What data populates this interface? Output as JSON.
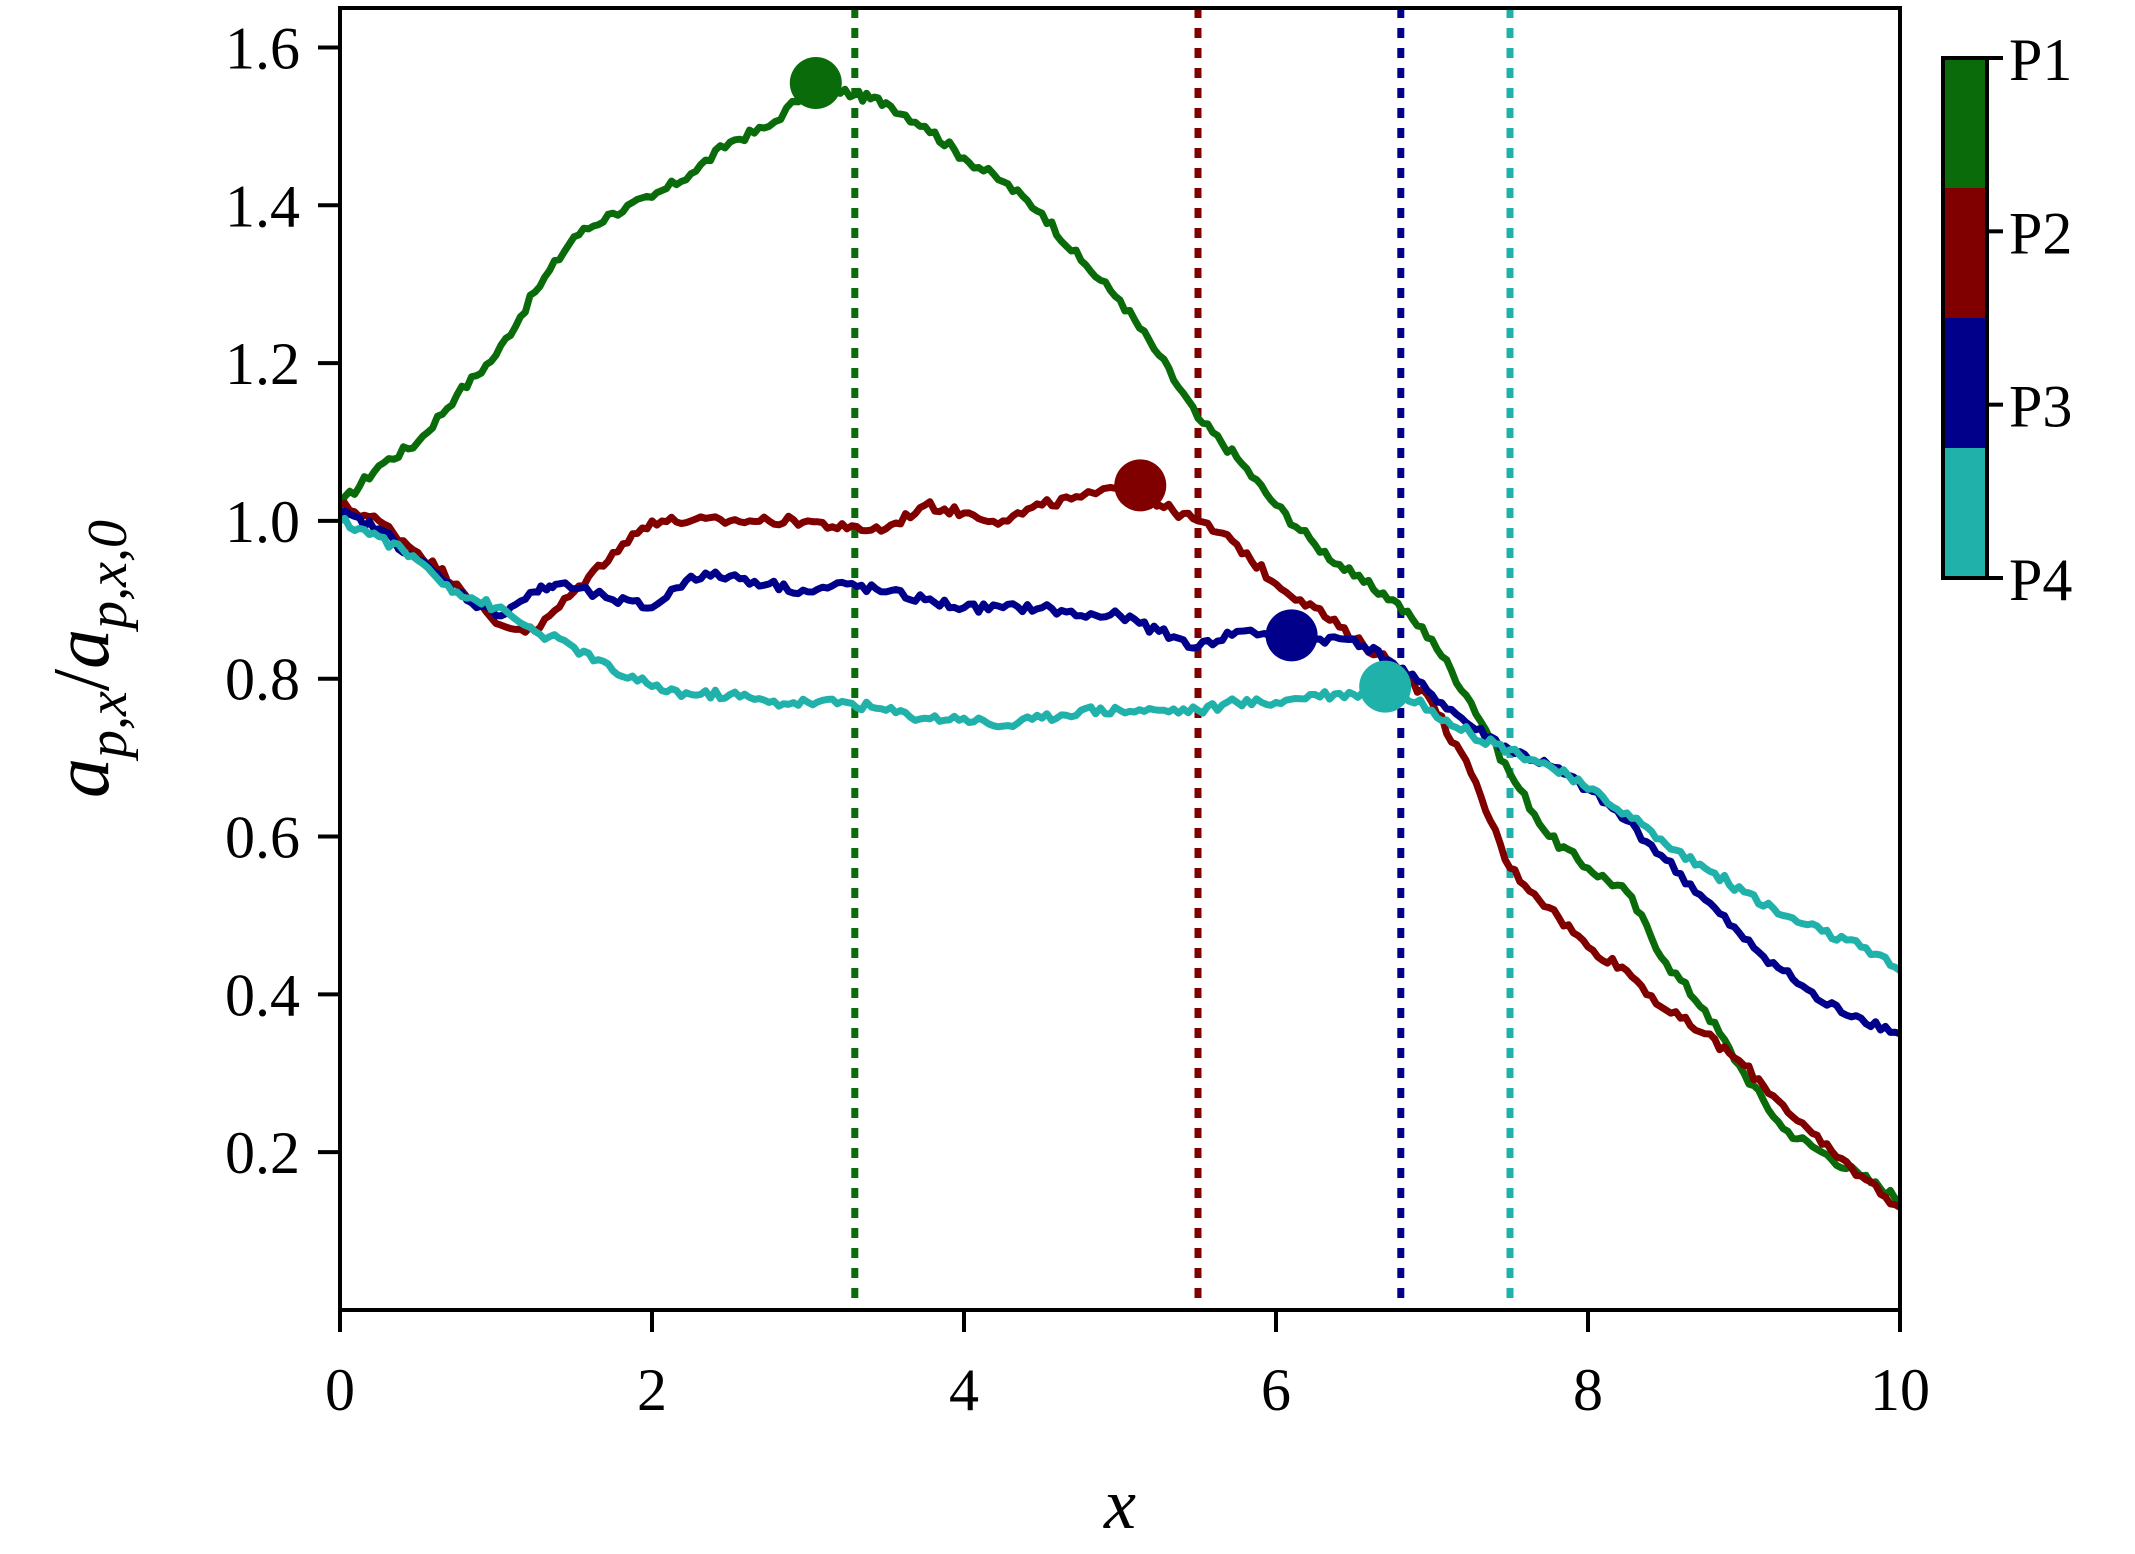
{
  "chart_data": {
    "type": "line",
    "xlabel": "x",
    "ylabel_parts": {
      "main": "a",
      "num_sub": "p,x",
      "den_sub": "p,x,0"
    },
    "xlim": [
      0,
      10
    ],
    "ylim": [
      0,
      1.65
    ],
    "x_ticks": [
      0,
      2,
      4,
      6,
      8,
      10
    ],
    "x_tick_labels": [
      "0",
      "2",
      "4",
      "6",
      "8",
      "10"
    ],
    "y_ticks": [
      0.2,
      0.4,
      0.6,
      0.8,
      1.0,
      1.2,
      1.4,
      1.6
    ],
    "y_tick_labels": [
      "0.2",
      "0.4",
      "0.6",
      "0.8",
      "1.0",
      "1.2",
      "1.4",
      "1.6"
    ],
    "grid": false,
    "series": [
      {
        "name": "P1",
        "color": "#0a6b0a",
        "vline_x": 3.3,
        "peak": [
          3.05,
          1.555
        ],
        "x": [
          0,
          0.25,
          0.5,
          0.75,
          1.0,
          1.25,
          1.5,
          1.75,
          2.0,
          2.25,
          2.5,
          2.75,
          3.05,
          3.3,
          3.5,
          3.75,
          4.0,
          4.25,
          4.5,
          4.75,
          5.0,
          5.25,
          5.5,
          5.75,
          6.0,
          6.25,
          6.5,
          6.75,
          7.0,
          7.25,
          7.5,
          7.75,
          8.0,
          8.25,
          8.5,
          8.75,
          9.0,
          9.25,
          9.5,
          9.75,
          10.0
        ],
        "y": [
          1.02,
          1.07,
          1.1,
          1.16,
          1.21,
          1.29,
          1.36,
          1.39,
          1.41,
          1.44,
          1.48,
          1.5,
          1.555,
          1.54,
          1.53,
          1.5,
          1.46,
          1.43,
          1.39,
          1.33,
          1.28,
          1.21,
          1.13,
          1.08,
          1.02,
          0.97,
          0.93,
          0.9,
          0.85,
          0.77,
          0.68,
          0.6,
          0.56,
          0.53,
          0.44,
          0.38,
          0.3,
          0.23,
          0.2,
          0.17,
          0.14
        ]
      },
      {
        "name": "P2",
        "color": "#800000",
        "vline_x": 5.5,
        "peak": [
          5.13,
          1.045
        ],
        "x": [
          0,
          0.25,
          0.5,
          0.75,
          1.0,
          1.25,
          1.5,
          1.75,
          2.0,
          2.25,
          2.5,
          2.75,
          3.0,
          3.25,
          3.5,
          3.75,
          4.0,
          4.25,
          4.5,
          4.75,
          5.13,
          5.25,
          5.5,
          5.75,
          6.0,
          6.25,
          6.5,
          6.75,
          7.0,
          7.25,
          7.5,
          7.75,
          8.0,
          8.25,
          8.5,
          8.75,
          9.0,
          9.25,
          9.5,
          9.75,
          10.0
        ],
        "y": [
          1.02,
          1.0,
          0.96,
          0.92,
          0.87,
          0.86,
          0.91,
          0.96,
          1.0,
          1.0,
          1.0,
          1.0,
          1.0,
          0.99,
          0.99,
          1.02,
          1.01,
          1.0,
          1.02,
          1.03,
          1.045,
          1.02,
          1.0,
          0.97,
          0.92,
          0.89,
          0.85,
          0.82,
          0.77,
          0.68,
          0.56,
          0.51,
          0.46,
          0.43,
          0.38,
          0.35,
          0.31,
          0.26,
          0.21,
          0.17,
          0.13
        ]
      },
      {
        "name": "P3",
        "color": "#00008b",
        "vline_x": 6.8,
        "peak": [
          6.1,
          0.855
        ],
        "x": [
          0,
          0.25,
          0.5,
          0.75,
          1.0,
          1.25,
          1.4,
          1.75,
          2.0,
          2.25,
          2.5,
          2.75,
          3.0,
          3.25,
          3.5,
          3.75,
          4.0,
          4.25,
          4.5,
          4.75,
          5.0,
          5.25,
          5.5,
          5.75,
          6.1,
          6.25,
          6.5,
          6.75,
          7.0,
          7.25,
          7.5,
          7.75,
          8.0,
          8.25,
          8.5,
          8.75,
          9.0,
          9.25,
          9.5,
          9.75,
          10.0
        ],
        "y": [
          1.01,
          0.99,
          0.95,
          0.91,
          0.88,
          0.91,
          0.92,
          0.9,
          0.89,
          0.93,
          0.93,
          0.92,
          0.91,
          0.92,
          0.91,
          0.9,
          0.89,
          0.89,
          0.89,
          0.88,
          0.88,
          0.86,
          0.84,
          0.86,
          0.855,
          0.85,
          0.85,
          0.82,
          0.78,
          0.74,
          0.71,
          0.69,
          0.66,
          0.62,
          0.57,
          0.52,
          0.47,
          0.43,
          0.39,
          0.37,
          0.35
        ]
      },
      {
        "name": "P4",
        "color": "#20b2aa",
        "vline_x": 7.5,
        "peak": [
          6.7,
          0.79
        ],
        "x": [
          0,
          0.25,
          0.5,
          0.75,
          1.0,
          1.25,
          1.5,
          1.75,
          2.0,
          2.25,
          2.5,
          2.75,
          3.0,
          3.25,
          3.5,
          3.75,
          4.0,
          4.25,
          4.5,
          4.75,
          5.0,
          5.25,
          5.5,
          5.75,
          6.0,
          6.25,
          6.5,
          6.7,
          7.0,
          7.25,
          7.5,
          7.75,
          8.0,
          8.25,
          8.5,
          8.75,
          9.0,
          9.25,
          9.5,
          9.75,
          10.0
        ],
        "y": [
          1.0,
          0.98,
          0.95,
          0.91,
          0.89,
          0.86,
          0.84,
          0.81,
          0.79,
          0.78,
          0.78,
          0.77,
          0.77,
          0.77,
          0.76,
          0.75,
          0.75,
          0.74,
          0.75,
          0.76,
          0.76,
          0.76,
          0.76,
          0.77,
          0.77,
          0.78,
          0.78,
          0.79,
          0.76,
          0.73,
          0.71,
          0.69,
          0.66,
          0.63,
          0.59,
          0.56,
          0.53,
          0.5,
          0.48,
          0.46,
          0.43
        ]
      }
    ],
    "colorbar": {
      "labels": [
        "P1",
        "P2",
        "P3",
        "P4"
      ],
      "colors": [
        "#0a6b0a",
        "#800000",
        "#00008b",
        "#20b2aa"
      ]
    }
  }
}
